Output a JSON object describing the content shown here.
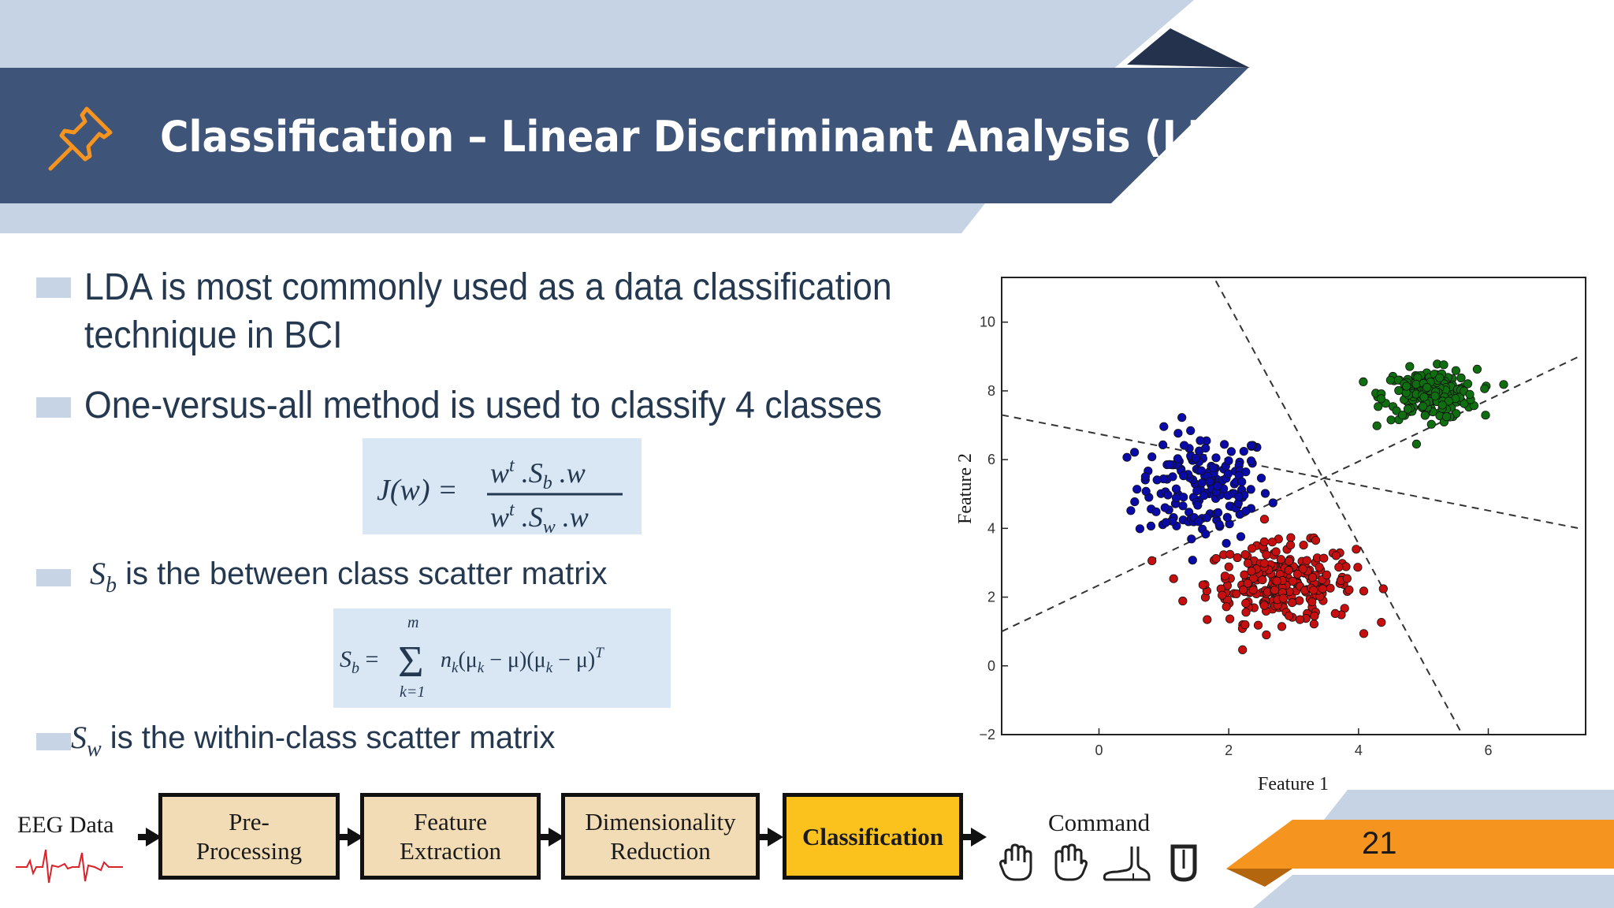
{
  "header": {
    "title": "Classification – Linear Discriminant Analysis (LDA)",
    "icon": "pushpin-icon"
  },
  "bullets": [
    {
      "line1": "LDA is most commonly used as a data classification",
      "line2": "technique in BCI"
    },
    {
      "line1": "One-versus-all  method is used to classify 4 classes"
    },
    {
      "symbol": "S",
      "subscript": "b",
      "text": " is the between class scatter matrix"
    },
    {
      "symbol": "S",
      "subscript": "w",
      "text": " is the within-class scatter matrix"
    }
  ],
  "formulas": {
    "jw": "J(w) = (wᵗ . S_b . w) / (wᵗ . S_w . w)",
    "sb": "S_b = Σ_{k=1}^{m} n_k(μ_k − μ)(μ_k − μ)^T"
  },
  "chart_data": {
    "type": "scatter",
    "xlabel": "Feature 1",
    "ylabel": "Feature 2",
    "xlim": [
      -1.5,
      7.5
    ],
    "ylim": [
      -2,
      11.3
    ],
    "xticks": [
      "0",
      "2",
      "4",
      "6"
    ],
    "yticks": [
      "−2",
      "0",
      "2",
      "4",
      "6",
      "8",
      "10"
    ],
    "series": [
      {
        "color": "#0a0aa8",
        "center": [
          1.6,
          5.2
        ],
        "spread": [
          0.85,
          1.35
        ],
        "count": 170
      },
      {
        "color": "#c80f0f",
        "center": [
          2.8,
          2.4
        ],
        "spread": [
          0.95,
          0.95
        ],
        "count": 260
      },
      {
        "color": "#0f6e0f",
        "center": [
          5.1,
          7.9
        ],
        "spread": [
          0.6,
          0.6
        ],
        "count": 200
      }
    ],
    "boundaries": [
      [
        [
          -1.5,
          1.0
        ],
        [
          7.4,
          9.0
        ]
      ],
      [
        [
          -1.5,
          7.3
        ],
        [
          7.4,
          4.0
        ]
      ],
      [
        [
          1.8,
          11.2
        ],
        [
          5.6,
          -2.0
        ]
      ]
    ]
  },
  "pipeline": {
    "input_label": "EEG Data",
    "steps": [
      {
        "label_1": "Pre-",
        "label_2": "Processing"
      },
      {
        "label_1": "Feature",
        "label_2": "Extraction"
      },
      {
        "label_1": "Dimensionality",
        "label_2": "Reduction"
      },
      {
        "label_1": "Classification",
        "label_2": ""
      }
    ],
    "output_label": "Command",
    "command_icons": [
      "left-hand-icon",
      "right-hand-icon",
      "foot-icon",
      "tongue-icon"
    ]
  },
  "page_number": "21",
  "colors": {
    "header_bg": "#3e5478",
    "header_band": "#c5d3e4",
    "accent_orange": "#f5941e",
    "active_step": "#fbc21e",
    "step_bg": "#f2dcb6",
    "formula_bg": "#d9e6f4"
  }
}
